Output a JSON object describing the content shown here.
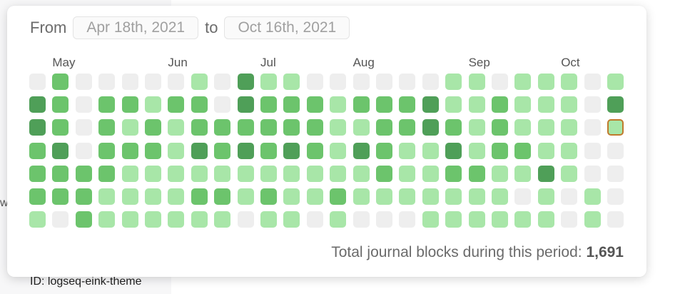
{
  "background": {
    "left_fragment": "w",
    "id_label": "ID: logseq-eink-theme"
  },
  "range": {
    "from_word": "From",
    "to_word": "to",
    "start": "Apr 18th, 2021",
    "end": "Oct 16th, 2021"
  },
  "months": [
    {
      "label": "May",
      "week": 1
    },
    {
      "label": "Jun",
      "week": 6
    },
    {
      "label": "Jul",
      "week": 10
    },
    {
      "label": "Aug",
      "week": 14
    },
    {
      "label": "Sep",
      "week": 19
    },
    {
      "label": "Oct",
      "week": 23
    }
  ],
  "colors": {
    "0": "#eeeeee",
    "1": "#a8e6a8",
    "2": "#6cc46c",
    "3": "#4f9f58",
    "selected_border": "#c07a2c"
  },
  "heatmap": [
    [
      0,
      2,
      0,
      0,
      0,
      0,
      0,
      1,
      0,
      3,
      1,
      1,
      0,
      0,
      0,
      0,
      0,
      0,
      1,
      1,
      0,
      1,
      1,
      1,
      0,
      1
    ],
    [
      3,
      2,
      0,
      2,
      2,
      1,
      2,
      2,
      0,
      3,
      2,
      2,
      2,
      1,
      2,
      2,
      2,
      3,
      1,
      1,
      2,
      1,
      1,
      1,
      0,
      3
    ],
    [
      3,
      2,
      0,
      2,
      1,
      2,
      1,
      2,
      2,
      2,
      2,
      2,
      2,
      1,
      1,
      2,
      2,
      3,
      2,
      1,
      2,
      1,
      1,
      1,
      0,
      1
    ],
    [
      2,
      3,
      0,
      2,
      2,
      2,
      1,
      3,
      2,
      3,
      2,
      3,
      2,
      1,
      3,
      2,
      1,
      1,
      3,
      1,
      2,
      2,
      1,
      1,
      0,
      0
    ],
    [
      2,
      2,
      2,
      2,
      1,
      1,
      1,
      1,
      1,
      1,
      1,
      1,
      1,
      1,
      1,
      2,
      1,
      1,
      2,
      2,
      1,
      1,
      3,
      1,
      0,
      0
    ],
    [
      2,
      2,
      2,
      1,
      1,
      1,
      1,
      2,
      2,
      1,
      2,
      1,
      1,
      2,
      1,
      1,
      1,
      1,
      1,
      1,
      1,
      0,
      1,
      0,
      1,
      0
    ],
    [
      1,
      0,
      2,
      1,
      1,
      1,
      1,
      1,
      1,
      0,
      1,
      1,
      0,
      1,
      0,
      0,
      0,
      1,
      1,
      1,
      1,
      1,
      1,
      0,
      1,
      0
    ]
  ],
  "selected_day": {
    "week": 25,
    "day": 2
  },
  "total": {
    "label": "Total journal blocks during this period:",
    "value": "1,691"
  }
}
